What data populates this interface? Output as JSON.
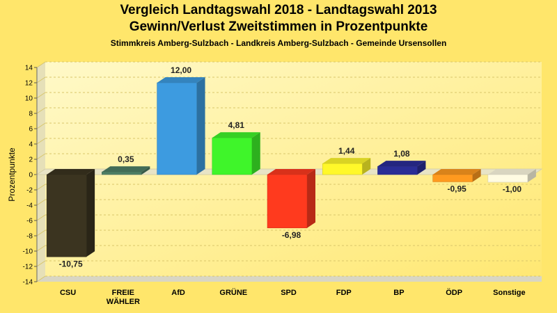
{
  "chart_data": {
    "type": "bar",
    "title": "Vergleich Landtagswahl 2018 - Landtagswahl 2013",
    "subtitle": "Gewinn/Verlust Zweitstimmen in Prozentpunkte",
    "caption": "Stimmkreis Amberg-Sulzbach - Landkreis Amberg-Sulzbach - Gemeinde Ursensollen",
    "ylabel": "Prozentpunkte",
    "xlabel": "",
    "ylim": [
      -14,
      14
    ],
    "yticks": [
      14,
      12,
      10,
      8,
      6,
      4,
      2,
      0,
      -2,
      -4,
      -6,
      -8,
      -10,
      -12,
      -14
    ],
    "categories": [
      [
        "CSU"
      ],
      [
        "FREIE",
        "WÄHLER"
      ],
      [
        "AfD"
      ],
      [
        "GRÜNE"
      ],
      [
        "SPD"
      ],
      [
        "FDP"
      ],
      [
        "BP"
      ],
      [
        "ÖDP"
      ],
      [
        "Sonstige"
      ]
    ],
    "values": [
      -10.75,
      0.35,
      12.0,
      4.81,
      -6.98,
      1.44,
      1.08,
      -0.95,
      -1.0
    ],
    "value_labels": [
      "-10,75",
      "0,35",
      "12,00",
      "4,81",
      "-6,98",
      "1,44",
      "1,08",
      "-0,95",
      "-1,00"
    ],
    "colors": [
      "#3b3420",
      "#4e7f66",
      "#3d9be0",
      "#3ff52a",
      "#ff3a1e",
      "#fff82a",
      "#2a2d96",
      "#ff9a1f",
      "#fffbe2"
    ],
    "grid": true
  }
}
